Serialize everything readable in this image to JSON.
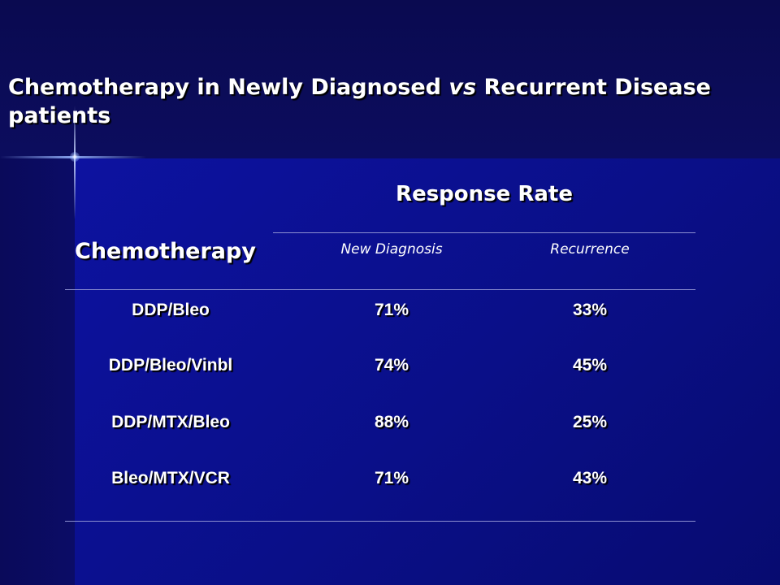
{
  "slide": {
    "title_part1": "Chemotherapy in Newly Diagnosed ",
    "title_vs": "vs",
    "title_part2": " Recurrent Disease patients"
  },
  "table": {
    "header_chemotherapy": "Chemotherapy",
    "header_response_rate": "Response Rate",
    "sub_new_diagnosis": "New Diagnosis",
    "sub_recurrence": "Recurrence",
    "rows": [
      {
        "regimen": "DDP/Bleo",
        "new_diagnosis": "71%",
        "recurrence": "33%"
      },
      {
        "regimen": "DDP/Bleo/Vinbl",
        "new_diagnosis": "74%",
        "recurrence": "45%"
      },
      {
        "regimen": "DDP/MTX/Bleo",
        "new_diagnosis": "88%",
        "recurrence": "25%"
      },
      {
        "regimen": "Bleo/MTX/VCR",
        "new_diagnosis": "71%",
        "recurrence": "43%"
      }
    ]
  }
}
